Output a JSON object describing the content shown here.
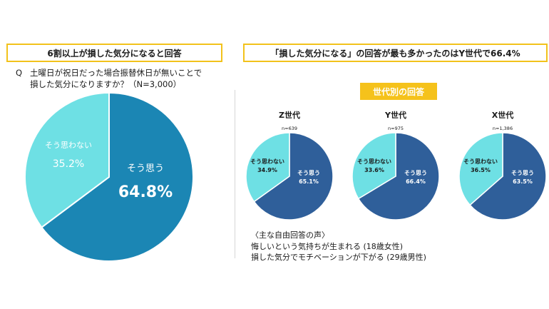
{
  "left": {
    "banner": "6割以上が損した気分になると回答",
    "question_mark": "Q",
    "question_line1": "土曜日が祝日だった場合振替休日が無いことで",
    "question_line2": "損した気分になりますか？（N=3,000）"
  },
  "right": {
    "banner": "「損した気分になる」の回答が最も多かったのはY世代で66.4%",
    "badge": "世代別の回答",
    "comments_title": "〈主な自由回答の声〉",
    "comments": [
      "悔しいという気持ちが生まれる (18歳女性)",
      "損した気分でモチベーションが下がる (29歳男性)"
    ]
  },
  "colors": {
    "accent_yellow": "#f5c21b",
    "main_pie_yes": "#1b86b4",
    "main_pie_no": "#6ee0e4",
    "gen_pie_yes": "#2f5f9a",
    "gen_pie_no": "#6ee0e4"
  },
  "chart_data": [
    {
      "type": "pie",
      "title": "",
      "slices": [
        {
          "label": "そう思う",
          "value": 64.8,
          "value_label": "64.8%",
          "color": "#1b86b4"
        },
        {
          "label": "そう思わない",
          "value": 35.2,
          "value_label": "35.2%",
          "color": "#6ee0e4"
        }
      ]
    },
    {
      "type": "pie",
      "title": "Z世代",
      "n_label": "n=639",
      "slices": [
        {
          "label": "そう思う",
          "value": 65.1,
          "value_label": "65.1%",
          "color": "#2f5f9a"
        },
        {
          "label": "そう思わない",
          "value": 34.9,
          "value_label": "34.9%",
          "color": "#6ee0e4"
        }
      ]
    },
    {
      "type": "pie",
      "title": "Y世代",
      "n_label": "n=975",
      "slices": [
        {
          "label": "そう思う",
          "value": 66.4,
          "value_label": "66.4%",
          "color": "#2f5f9a"
        },
        {
          "label": "そう思わない",
          "value": 33.6,
          "value_label": "33.6%",
          "color": "#6ee0e4"
        }
      ]
    },
    {
      "type": "pie",
      "title": "X世代",
      "n_label": "n=1,386",
      "slices": [
        {
          "label": "そう思う",
          "value": 63.5,
          "value_label": "63.5%",
          "color": "#2f5f9a"
        },
        {
          "label": "そう思わない",
          "value": 36.5,
          "value_label": "36.5%",
          "color": "#6ee0e4"
        }
      ]
    }
  ]
}
